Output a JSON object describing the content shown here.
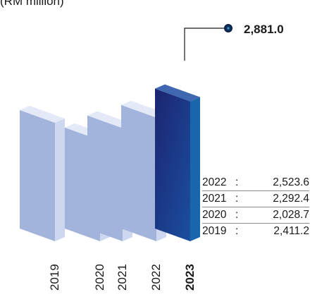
{
  "unit_label": "(RM million)",
  "colors": {
    "bar_face": "#a3b4dc",
    "bar_side": "#cdd7ef",
    "bar_top": "#e3e9f7",
    "highlight_face_top": "#1c2470",
    "highlight_face_bottom": "#1a4fa0",
    "highlight_side": "#1a66ad",
    "highlight_top": "#3f68b0",
    "callout": "#1a1a1a"
  },
  "chart_data": {
    "type": "bar",
    "categories": [
      "2019",
      "2020",
      "2021",
      "2022",
      "2023"
    ],
    "values": [
      2411.2,
      2028.7,
      2292.4,
      2523.6,
      2881.0
    ],
    "highlight": "2023",
    "highlight_label": "2,881.0",
    "legend": [
      {
        "year": "2022",
        "sep": ":",
        "value": "2,523.6"
      },
      {
        "year": "2021",
        "sep": ":",
        "value": "2,292.4"
      },
      {
        "year": "2020",
        "sep": ":",
        "value": "2,028.7"
      },
      {
        "year": "2019",
        "sep": ":",
        "value": "2,411.2"
      }
    ]
  }
}
